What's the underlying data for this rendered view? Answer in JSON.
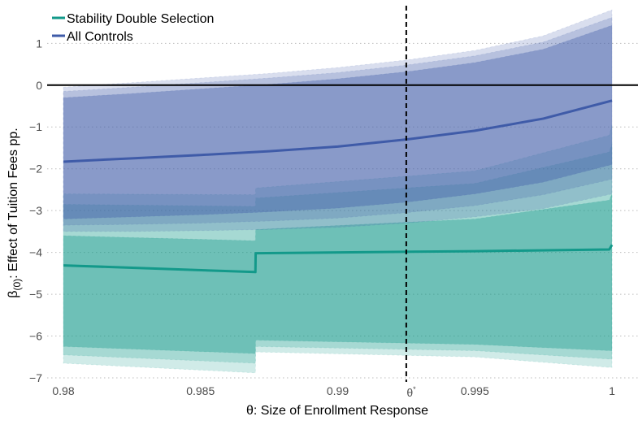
{
  "chart_data": {
    "type": "line",
    "title": "",
    "xlabel": "θ: Size of Enrollment Response",
    "ylabel_main": "β",
    "ylabel_sub": "(0)",
    "ylabel_rest": ": Effect of Tuition Fees pp.",
    "xlim": [
      0.98,
      1.0
    ],
    "ylim": [
      -7,
      1.9
    ],
    "x_ticks": [
      0.98,
      0.985,
      0.99,
      0.995,
      1.0
    ],
    "x_tick_labels": [
      "0.98",
      "0.985",
      "0.99",
      "0.995",
      "1"
    ],
    "y_ticks": [
      1,
      0,
      -1,
      -2,
      -3,
      -4,
      -5,
      -6,
      -7
    ],
    "y_tick_labels": [
      "1",
      "0",
      "−1",
      "−2",
      "−3",
      "−4",
      "−5",
      "−6",
      "−7"
    ],
    "grid": "horizontal dotted",
    "reference_line": {
      "y": 0,
      "color": "#000000"
    },
    "threshold": {
      "x": 0.9925,
      "label": "θ",
      "label_sup": "*"
    },
    "legend_position": "top-left",
    "series": [
      {
        "name": "Stability Double Selection",
        "color": "#13998a",
        "x": [
          0.98,
          0.987,
          0.98701,
          0.995,
          0.9999,
          1.0
        ],
        "y": [
          -4.31,
          -4.47,
          -4.02,
          -3.97,
          -3.93,
          -3.82
        ],
        "bands": [
          {
            "level": "outer",
            "lower": [
              -6.65,
              -6.88,
              -6.38,
              -6.5,
              -6.75,
              -6.75
            ],
            "upper": [
              -2.6,
              -2.62,
              -2.46,
              -2.05,
              -1.2,
              -0.95
            ]
          },
          {
            "level": "mid",
            "lower": [
              -6.45,
              -6.65,
              -6.25,
              -6.35,
              -6.55,
              -6.55
            ],
            "upper": [
              -2.85,
              -2.9,
              -2.7,
              -2.35,
              -1.6,
              -1.4
            ]
          },
          {
            "level": "inner",
            "lower": [
              -6.25,
              -6.42,
              -6.1,
              -6.2,
              -6.35,
              -6.35
            ],
            "upper": [
              -3.6,
              -3.72,
              -3.45,
              -3.2,
              -2.75,
              -2.6
            ]
          }
        ]
      },
      {
        "name": "All Controls",
        "color": "#3f5ba8",
        "x": [
          0.98,
          0.9825,
          0.985,
          0.9875,
          0.99,
          0.9925,
          0.995,
          0.9975,
          1.0
        ],
        "y": [
          -1.83,
          -1.75,
          -1.67,
          -1.58,
          -1.47,
          -1.3,
          -1.09,
          -0.8,
          -0.37
        ],
        "bands": [
          {
            "level": "outer",
            "lower": [
              -3.5,
              -3.5,
              -3.48,
              -3.45,
              -3.4,
              -3.3,
              -3.15,
              -2.95,
              -2.6
            ],
            "upper": [
              -0.05,
              0.06,
              0.17,
              0.28,
              0.42,
              0.6,
              0.83,
              1.18,
              1.8
            ]
          },
          {
            "level": "mid",
            "lower": [
              -3.35,
              -3.33,
              -3.3,
              -3.25,
              -3.18,
              -3.05,
              -2.88,
              -2.62,
              -2.25
            ],
            "upper": [
              -0.15,
              -0.05,
              0.06,
              0.17,
              0.3,
              0.48,
              0.7,
              1.03,
              1.62
            ]
          },
          {
            "level": "inner",
            "lower": [
              -3.2,
              -3.15,
              -3.1,
              -3.03,
              -2.94,
              -2.8,
              -2.6,
              -2.32,
              -1.9
            ],
            "upper": [
              -0.3,
              -0.2,
              -0.09,
              0.02,
              0.15,
              0.32,
              0.54,
              0.86,
              1.43
            ]
          }
        ]
      }
    ]
  }
}
